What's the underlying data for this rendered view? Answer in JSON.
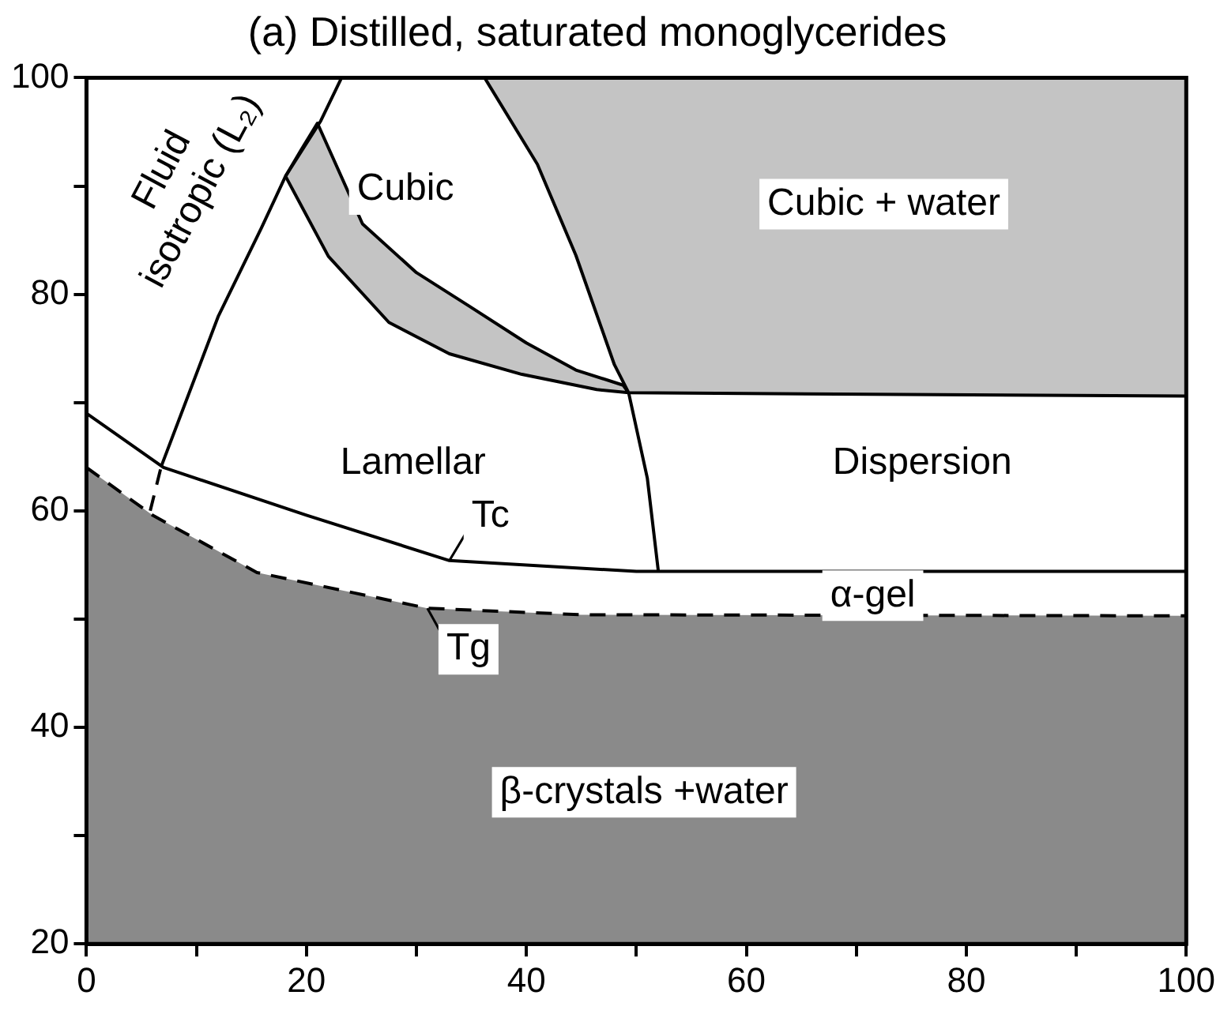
{
  "chart_data": {
    "type": "line",
    "title": "(a) Distilled, saturated monoglycerides",
    "xlim": [
      0,
      100
    ],
    "xticks": [
      0,
      {
        "value": 10,
        "label": null
      },
      20,
      {
        "value": 30,
        "label": null
      },
      40,
      {
        "value": 50,
        "label": null
      },
      60,
      {
        "value": 70,
        "label": null
      },
      80,
      {
        "value": 90,
        "label": null
      },
      100
    ],
    "ylim": [
      20,
      100
    ],
    "yticks": [
      20,
      {
        "value": 30,
        "label": null
      },
      40,
      {
        "value": 50,
        "label": null
      },
      60,
      {
        "value": 70,
        "label": null
      },
      80,
      {
        "value": 90,
        "label": null
      },
      100
    ],
    "grid": false,
    "legend": false,
    "series": [
      {
        "color": "#000000",
        "x": [
          0,
          7,
          20,
          33,
          50,
          100
        ],
        "values": [
          69,
          64,
          59.6,
          55.4,
          54.4,
          54.4
        ]
      },
      {
        "color": "#000000",
        "x": [
          6.8,
          12,
          15.9,
          18.1,
          21.3,
          23.2
        ],
        "values": [
          64.1,
          78,
          86.1,
          90.9,
          96,
          100
        ]
      },
      {
        "color": "#000000",
        "line_style": "dashed",
        "x": [
          5.8,
          6.8
        ],
        "values": [
          60,
          64.1
        ]
      },
      {
        "color": "#000000",
        "x": [
          49.3,
          51,
          52
        ],
        "values": [
          70.9,
          63,
          54.4
        ]
      },
      {
        "type": "area",
        "color": "#c4c4c4",
        "x": [
          36.2,
          41,
          44.5,
          48,
          49.3,
          100,
          100,
          36.2
        ],
        "values": [
          100,
          92,
          83.6,
          73.5,
          70.9,
          70.6,
          100,
          100
        ]
      },
      {
        "type": "area",
        "color": "#c4c4c4",
        "x": [
          18.1,
          19.5,
          21,
          25.1,
          30,
          34.8,
          40,
          44.5,
          48.8,
          49.3,
          46.4,
          39.6,
          33,
          27.5,
          22,
          18.1
        ],
        "values": [
          90.9,
          93.3,
          95.8,
          86.5,
          82,
          78.9,
          75.5,
          73,
          71.6,
          70.9,
          71.2,
          72.6,
          74.5,
          77.4,
          83.5,
          90.9
        ]
      },
      {
        "type": "area",
        "color": "#8a8a8a",
        "line_style": "dashed",
        "x": [
          0,
          6,
          15.5,
          31,
          45,
          100,
          100,
          0,
          0
        ],
        "values": [
          64,
          59.6,
          54.3,
          51,
          50.4,
          50.3,
          20,
          20,
          64
        ]
      }
    ],
    "annotations": [
      "Fluid\nisotropic (L₂)",
      "Cubic",
      "Cubic + water",
      "Lamellar",
      "Dispersion",
      {
        "text": "Tc",
        "x": 33,
        "y": 55.4
      },
      "α-gel",
      {
        "text": "Tg",
        "x": 31,
        "y": 51
      },
      "β-crystals +water"
    ]
  }
}
